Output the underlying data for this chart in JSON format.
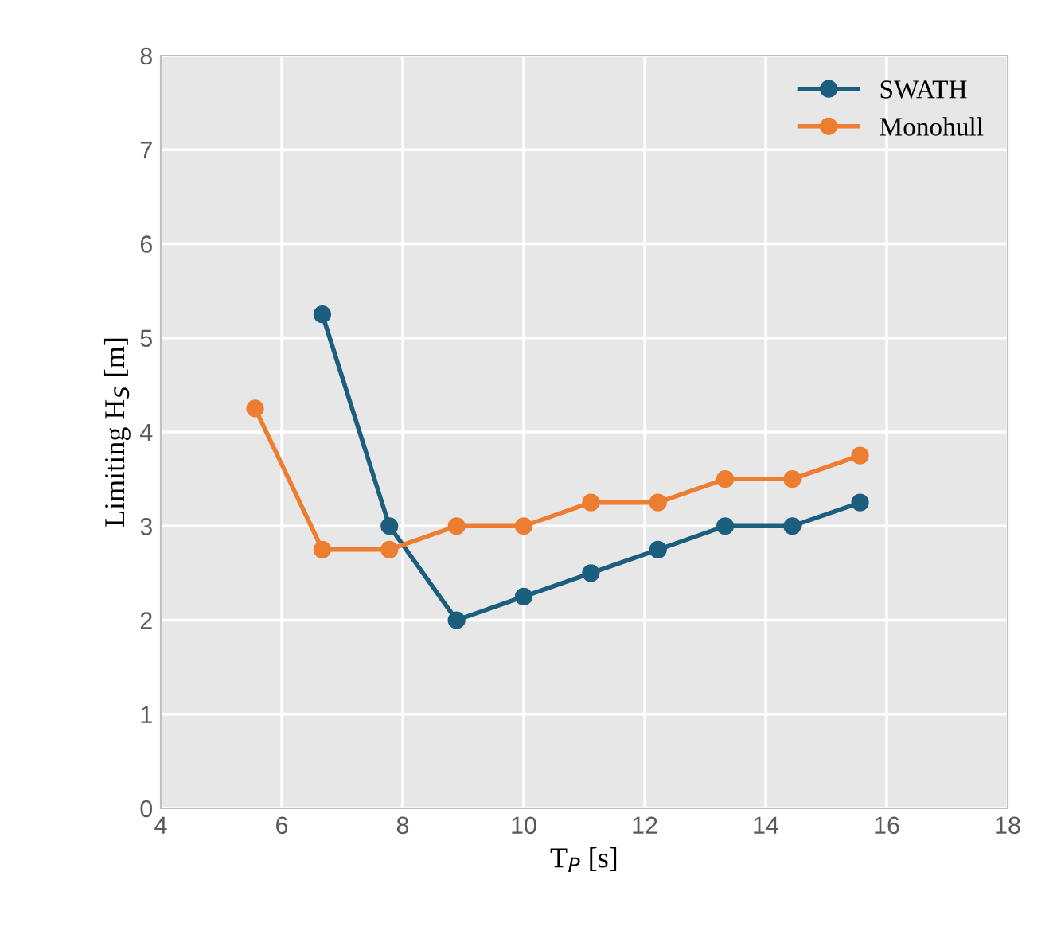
{
  "chart_data": {
    "type": "line",
    "xlabel": "T$_{P}$ [s]",
    "ylabel": "Limiting H$_{S}$ [m]",
    "x": [
      5.56,
      6.67,
      7.78,
      8.89,
      10,
      11.11,
      12.22,
      13.33,
      14.44,
      15.56
    ],
    "series": [
      {
        "name": "SWATH",
        "color": "#1b5e7e",
        "values": [
          null,
          5.25,
          3,
          2,
          2.25,
          2.5,
          2.75,
          3,
          3,
          3.25
        ]
      },
      {
        "name": "Monohull",
        "color": "#ed7d31",
        "values": [
          4.25,
          2.75,
          2.75,
          3,
          3,
          3.25,
          3.25,
          3.5,
          3.5,
          3.75
        ]
      }
    ],
    "xlim": [
      4,
      18
    ],
    "xticks": [
      4,
      6,
      8,
      10,
      12,
      14,
      16,
      18
    ],
    "ylim": [
      0,
      8
    ],
    "yticks": [
      0,
      1,
      2,
      3,
      4,
      5,
      6,
      7,
      8
    ],
    "grid": true,
    "legend": "top right",
    "marker": "circle",
    "line_style": "solid"
  }
}
